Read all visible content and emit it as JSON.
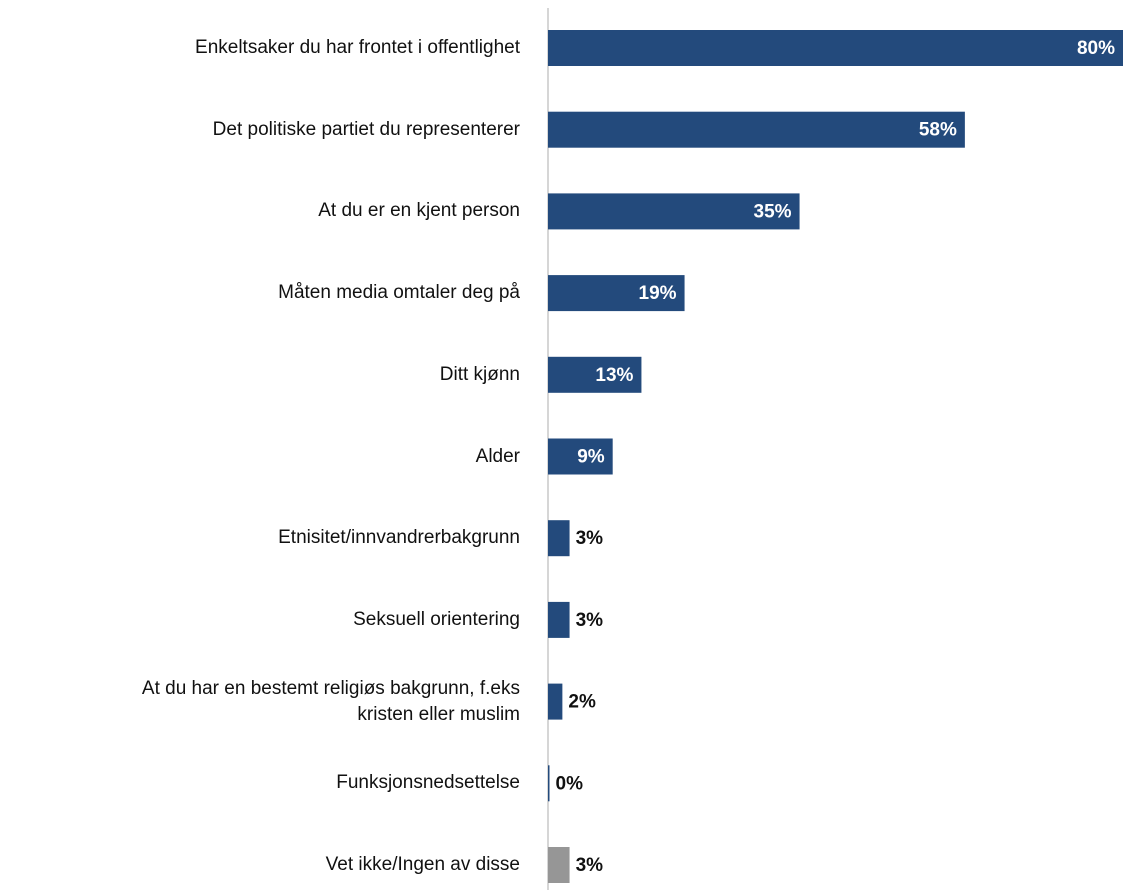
{
  "chart_data": {
    "type": "bar",
    "orientation": "horizontal",
    "categories": [
      "Enkeltsaker du har frontet i offentlighet",
      "Det politiske partiet du representerer",
      "At du er en kjent person",
      "Måten media omtaler deg på",
      "Ditt kjønn",
      "Alder",
      "Etnisitet/innvandrerbakgrunn",
      "Seksuell orientering",
      "At du har en bestemt religiøs bakgrunn, f.eks\nkristen eller muslim",
      "Funksjonsnedsettelse",
      "Vet ikke/Ingen av disse"
    ],
    "values": [
      80,
      58,
      35,
      19,
      13,
      9,
      3,
      3,
      2,
      0,
      3
    ],
    "value_labels": [
      "80%",
      "58%",
      "35%",
      "19%",
      "13%",
      "9%",
      "3%",
      "3%",
      "2%",
      "0%",
      "3%"
    ],
    "colors": [
      "#234a7c",
      "#234a7c",
      "#234a7c",
      "#234a7c",
      "#234a7c",
      "#234a7c",
      "#234a7c",
      "#234a7c",
      "#234a7c",
      "#234a7c",
      "#969696"
    ],
    "xlim": [
      0,
      80
    ]
  }
}
